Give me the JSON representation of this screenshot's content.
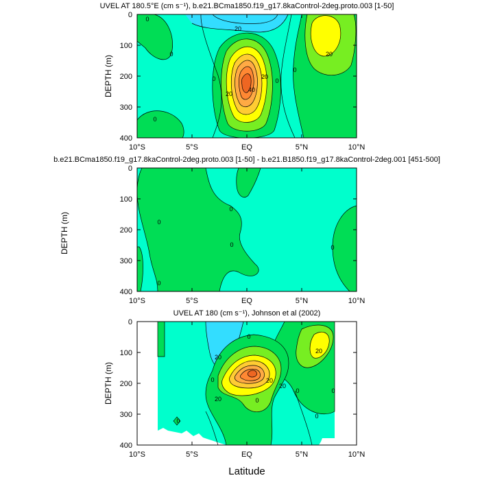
{
  "chart_data": [
    {
      "type": "contour",
      "title": "UVEL AT 180.5°E (cm s⁻¹), b.e21.BCma1850.f19_g17.8kaControl-2deg.proto.003 [1-50]",
      "ylabel": "DEPTH (m)",
      "xlabel": "",
      "xlim": [
        -10,
        10
      ],
      "ylim": [
        400,
        0
      ],
      "x_ticks": [
        "10°S",
        "5°S",
        "EQ",
        "5°N",
        "10°N"
      ],
      "y_ticks": [
        "0",
        "100",
        "200",
        "300",
        "400"
      ],
      "contour_interval": 10,
      "contour_labels": [
        "0",
        "0",
        "0",
        "0",
        "0",
        "0",
        "20",
        "20",
        "20",
        "20",
        "40"
      ],
      "core": {
        "lat": 0.0,
        "depth": 180,
        "max_value": 70
      },
      "secondary_core": {
        "lat": 7.0,
        "depth": 75,
        "max_value": 30
      }
    },
    {
      "type": "contour",
      "title": "b.e21.BCma1850.f19_g17.8kaControl-2deg.proto.003 [1-50] - b.e21.B1850.f19_g17.8kaControl-2deg.001 [451-500]",
      "ylabel": "DEPTH (m)",
      "xlabel": "",
      "xlim": [
        -10,
        10
      ],
      "ylim": [
        400,
        0
      ],
      "x_ticks": [
        "10°S",
        "5°S",
        "EQ",
        "5°N",
        "10°N"
      ],
      "y_ticks": [
        "0",
        "100",
        "200",
        "300",
        "400"
      ],
      "contour_interval": 10,
      "contour_labels": [
        "0",
        "0",
        "0",
        "0",
        "0"
      ]
    },
    {
      "type": "contour",
      "title": "UVEL AT 180 (cm s⁻¹), Johnson et al (2002)",
      "ylabel": "DEPTH (m)",
      "xlabel": "Latitude",
      "xlim": [
        -10,
        10
      ],
      "ylim": [
        400,
        0
      ],
      "x_ticks": [
        "10°S",
        "5°S",
        "EQ",
        "5°N",
        "10°N"
      ],
      "y_ticks": [
        "0",
        "100",
        "200",
        "300",
        "400"
      ],
      "contour_interval": 10,
      "contour_labels": [
        "0",
        "0",
        "0",
        "0",
        "0",
        "0",
        "0",
        "20",
        "20",
        "20",
        "20",
        "20"
      ],
      "core": {
        "lat": 0.5,
        "depth": 170,
        "max_value": 70
      },
      "secondary_core": {
        "lat": 6.5,
        "depth": 100,
        "max_value": 40
      }
    }
  ],
  "colors": {
    "below_minus10": "#33ddff",
    "minus10_to_0": "#00ffcc",
    "zero_to_10": "#00dd55",
    "ten_to_20": "#77ee22",
    "twenty_to_30": "#ffff00",
    "thirty_to_40": "#ffcc33",
    "forty_to_50": "#ffaa44",
    "fifty_to_60": "#ff8833",
    "above_60": "#ee6622"
  }
}
